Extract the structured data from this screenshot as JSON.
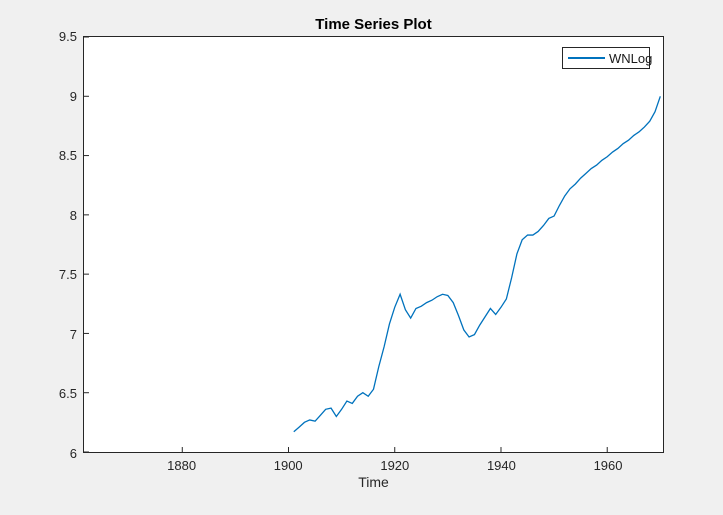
{
  "figure": {
    "background_color": "#f0f0f0",
    "plot_background_color": "#ffffff",
    "axis_color": "#262626"
  },
  "chart_data": {
    "type": "line",
    "title": "Time Series Plot",
    "xlabel": "Time",
    "ylabel": "",
    "grid": false,
    "legend_position": "top-right",
    "xlim": [
      1861.5,
      1970.5
    ],
    "ylim": [
      6,
      9.5
    ],
    "xticks": [
      1880,
      1900,
      1920,
      1940,
      1960
    ],
    "yticks": [
      6,
      6.5,
      7,
      7.5,
      8,
      8.5,
      9,
      9.5
    ],
    "series": [
      {
        "name": "WNLog",
        "color": "#0072BD",
        "x": [
          1901,
          1902,
          1903,
          1904,
          1905,
          1906,
          1907,
          1908,
          1909,
          1910,
          1911,
          1912,
          1913,
          1914,
          1915,
          1916,
          1917,
          1918,
          1919,
          1920,
          1921,
          1922,
          1923,
          1924,
          1925,
          1926,
          1927,
          1928,
          1929,
          1930,
          1931,
          1932,
          1933,
          1934,
          1935,
          1936,
          1937,
          1938,
          1939,
          1940,
          1941,
          1942,
          1943,
          1944,
          1945,
          1946,
          1947,
          1948,
          1949,
          1950,
          1951,
          1952,
          1953,
          1954,
          1955,
          1956,
          1957,
          1958,
          1959,
          1960,
          1961,
          1962,
          1963,
          1964,
          1965,
          1966,
          1967,
          1968,
          1969,
          1970
        ],
        "values": [
          6.17,
          6.21,
          6.25,
          6.27,
          6.26,
          6.31,
          6.36,
          6.37,
          6.3,
          6.36,
          6.43,
          6.41,
          6.47,
          6.5,
          6.47,
          6.53,
          6.72,
          6.89,
          7.08,
          7.22,
          7.33,
          7.2,
          7.13,
          7.21,
          7.23,
          7.26,
          7.28,
          7.31,
          7.33,
          7.32,
          7.26,
          7.15,
          7.03,
          6.97,
          6.99,
          7.07,
          7.14,
          7.21,
          7.16,
          7.22,
          7.29,
          7.47,
          7.67,
          7.79,
          7.83,
          7.83,
          7.86,
          7.91,
          7.97,
          7.99,
          8.08,
          8.16,
          8.22,
          8.26,
          8.31,
          8.35,
          8.39,
          8.42,
          8.46,
          8.49,
          8.53,
          8.56,
          8.6,
          8.63,
          8.67,
          8.7,
          8.74,
          8.79,
          8.87,
          9.0
        ]
      }
    ]
  }
}
